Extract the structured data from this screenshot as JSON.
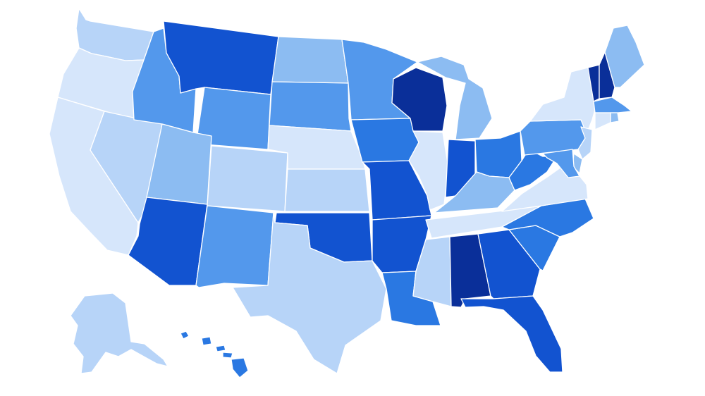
{
  "map": {
    "type": "choropleth",
    "region": "United States",
    "palette": {
      "lightest": "#d6e6fb",
      "light": "#b7d4f8",
      "medium_light": "#8cbcf2",
      "medium": "#5398ec",
      "medium_dark": "#2a78e2",
      "dark": "#1253d0",
      "darkest": "#0a2f99"
    },
    "states": [
      {
        "id": "WA",
        "shade": "light"
      },
      {
        "id": "OR",
        "shade": "lightest"
      },
      {
        "id": "CA",
        "shade": "lightest"
      },
      {
        "id": "NV",
        "shade": "light"
      },
      {
        "id": "ID",
        "shade": "medium"
      },
      {
        "id": "MT",
        "shade": "dark"
      },
      {
        "id": "WY",
        "shade": "medium"
      },
      {
        "id": "UT",
        "shade": "medium_light"
      },
      {
        "id": "AZ",
        "shade": "dark"
      },
      {
        "id": "CO",
        "shade": "light"
      },
      {
        "id": "NM",
        "shade": "medium"
      },
      {
        "id": "ND",
        "shade": "medium_light"
      },
      {
        "id": "SD",
        "shade": "medium"
      },
      {
        "id": "NE",
        "shade": "lightest"
      },
      {
        "id": "KS",
        "shade": "light"
      },
      {
        "id": "OK",
        "shade": "dark"
      },
      {
        "id": "TX",
        "shade": "light"
      },
      {
        "id": "MN",
        "shade": "medium"
      },
      {
        "id": "IA",
        "shade": "medium_dark"
      },
      {
        "id": "MO",
        "shade": "dark"
      },
      {
        "id": "AR",
        "shade": "dark"
      },
      {
        "id": "LA",
        "shade": "medium_dark"
      },
      {
        "id": "WI",
        "shade": "darkest"
      },
      {
        "id": "IL",
        "shade": "lightest"
      },
      {
        "id": "MI",
        "shade": "medium_light"
      },
      {
        "id": "IN",
        "shade": "dark"
      },
      {
        "id": "OH",
        "shade": "medium_dark"
      },
      {
        "id": "KY",
        "shade": "medium_light"
      },
      {
        "id": "TN",
        "shade": "lightest"
      },
      {
        "id": "MS",
        "shade": "light"
      },
      {
        "id": "AL",
        "shade": "darkest"
      },
      {
        "id": "GA",
        "shade": "dark"
      },
      {
        "id": "FL",
        "shade": "dark"
      },
      {
        "id": "SC",
        "shade": "medium_dark"
      },
      {
        "id": "NC",
        "shade": "medium_dark"
      },
      {
        "id": "VA",
        "shade": "lightest"
      },
      {
        "id": "WV",
        "shade": "medium_dark"
      },
      {
        "id": "PA",
        "shade": "medium"
      },
      {
        "id": "NY",
        "shade": "lightest"
      },
      {
        "id": "VT",
        "shade": "darkest"
      },
      {
        "id": "NH",
        "shade": "darkest"
      },
      {
        "id": "ME",
        "shade": "medium_light"
      },
      {
        "id": "MA",
        "shade": "medium"
      },
      {
        "id": "RI",
        "shade": "medium_light"
      },
      {
        "id": "CT",
        "shade": "lightest"
      },
      {
        "id": "NJ",
        "shade": "light"
      },
      {
        "id": "DE",
        "shade": "medium_light"
      },
      {
        "id": "MD",
        "shade": "medium"
      },
      {
        "id": "AK",
        "shade": "light"
      },
      {
        "id": "HI",
        "shade": "medium_dark"
      }
    ]
  }
}
